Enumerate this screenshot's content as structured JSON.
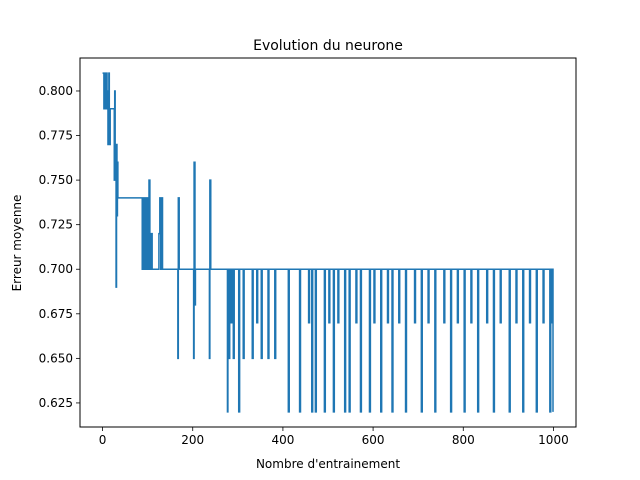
{
  "chart_data": {
    "type": "line",
    "title": "Evolution du neurone",
    "xlabel": "Nombre d'entrainement",
    "ylabel": "Erreur moyenne",
    "xlim": [
      -50,
      1050
    ],
    "ylim": [
      0.6115,
      0.8185
    ],
    "xticks": [
      0,
      200,
      400,
      600,
      800,
      1000
    ],
    "xtick_labels": [
      "0",
      "200",
      "400",
      "600",
      "800",
      "1000"
    ],
    "yticks": [
      0.625,
      0.65,
      0.675,
      0.7,
      0.725,
      0.75,
      0.775,
      0.8
    ],
    "ytick_labels": [
      "0.625",
      "0.650",
      "0.675",
      "0.700",
      "0.725",
      "0.750",
      "0.775",
      "0.800"
    ],
    "grid": false,
    "legend": "none",
    "series": [
      {
        "color": "#1f77b4",
        "style": "steps",
        "points": [
          [
            0,
            0.81
          ],
          [
            2,
            0.81
          ],
          [
            3,
            0.79
          ],
          [
            4,
            0.81
          ],
          [
            7,
            0.79
          ],
          [
            9,
            0.81
          ],
          [
            10,
            0.8
          ],
          [
            12,
            0.77
          ],
          [
            14,
            0.81
          ],
          [
            15,
            0.77
          ],
          [
            17,
            0.79
          ],
          [
            25,
            0.79
          ],
          [
            26,
            0.75
          ],
          [
            27,
            0.8
          ],
          [
            28,
            0.75
          ],
          [
            30,
            0.69
          ],
          [
            31,
            0.77
          ],
          [
            32,
            0.73
          ],
          [
            33,
            0.76
          ],
          [
            34,
            0.74
          ],
          [
            85,
            0.74
          ],
          [
            88,
            0.7
          ],
          [
            89,
            0.74
          ],
          [
            92,
            0.7
          ],
          [
            94,
            0.74
          ],
          [
            96,
            0.7
          ],
          [
            98,
            0.74
          ],
          [
            100,
            0.7
          ],
          [
            103,
            0.75
          ],
          [
            105,
            0.7
          ],
          [
            108,
            0.72
          ],
          [
            110,
            0.7
          ],
          [
            125,
            0.72
          ],
          [
            127,
            0.74
          ],
          [
            129,
            0.7
          ],
          [
            131,
            0.74
          ],
          [
            133,
            0.7
          ],
          [
            165,
            0.7
          ],
          [
            167,
            0.65
          ],
          [
            168,
            0.74
          ],
          [
            170,
            0.7
          ],
          [
            200,
            0.7
          ],
          [
            202,
            0.65
          ],
          [
            203,
            0.76
          ],
          [
            205,
            0.68
          ],
          [
            206,
            0.7
          ],
          [
            235,
            0.7
          ],
          [
            237,
            0.65
          ],
          [
            238,
            0.75
          ],
          [
            240,
            0.7
          ],
          [
            275,
            0.7
          ],
          [
            277,
            0.62
          ],
          [
            278,
            0.7
          ],
          [
            280,
            0.65
          ],
          [
            282,
            0.7
          ],
          [
            285,
            0.67
          ],
          [
            287,
            0.7
          ],
          [
            290,
            0.65
          ],
          [
            292,
            0.7
          ],
          [
            300,
            0.7
          ],
          [
            302,
            0.62
          ],
          [
            304,
            0.7
          ],
          [
            310,
            0.7
          ],
          [
            312,
            0.65
          ],
          [
            314,
            0.7
          ],
          [
            330,
            0.7
          ],
          [
            332,
            0.65
          ],
          [
            334,
            0.7
          ],
          [
            340,
            0.7
          ],
          [
            342,
            0.67
          ],
          [
            344,
            0.7
          ],
          [
            350,
            0.7
          ],
          [
            352,
            0.65
          ],
          [
            354,
            0.7
          ],
          [
            365,
            0.7
          ],
          [
            367,
            0.65
          ],
          [
            369,
            0.7
          ],
          [
            380,
            0.7
          ],
          [
            382,
            0.65
          ],
          [
            384,
            0.7
          ],
          [
            410,
            0.7
          ],
          [
            412,
            0.62
          ],
          [
            414,
            0.7
          ],
          [
            435,
            0.7
          ],
          [
            437,
            0.62
          ],
          [
            439,
            0.7
          ],
          [
            455,
            0.7
          ],
          [
            457,
            0.67
          ],
          [
            459,
            0.7
          ],
          [
            462,
            0.7
          ],
          [
            464,
            0.62
          ],
          [
            466,
            0.7
          ],
          [
            470,
            0.7
          ],
          [
            472,
            0.62
          ],
          [
            474,
            0.7
          ],
          [
            490,
            0.7
          ],
          [
            492,
            0.62
          ],
          [
            494,
            0.7
          ],
          [
            500,
            0.7
          ],
          [
            502,
            0.67
          ],
          [
            504,
            0.7
          ],
          [
            510,
            0.7
          ],
          [
            512,
            0.62
          ],
          [
            514,
            0.7
          ],
          [
            520,
            0.7
          ],
          [
            522,
            0.67
          ],
          [
            524,
            0.7
          ],
          [
            535,
            0.7
          ],
          [
            537,
            0.62
          ],
          [
            539,
            0.7
          ],
          [
            545,
            0.7
          ],
          [
            547,
            0.62
          ],
          [
            549,
            0.7
          ],
          [
            560,
            0.7
          ],
          [
            562,
            0.67
          ],
          [
            564,
            0.7
          ],
          [
            570,
            0.7
          ],
          [
            572,
            0.62
          ],
          [
            574,
            0.7
          ],
          [
            590,
            0.7
          ],
          [
            592,
            0.62
          ],
          [
            594,
            0.7
          ],
          [
            600,
            0.7
          ],
          [
            602,
            0.67
          ],
          [
            604,
            0.7
          ],
          [
            615,
            0.7
          ],
          [
            617,
            0.62
          ],
          [
            619,
            0.7
          ],
          [
            630,
            0.7
          ],
          [
            632,
            0.67
          ],
          [
            634,
            0.7
          ],
          [
            640,
            0.7
          ],
          [
            642,
            0.62
          ],
          [
            644,
            0.7
          ],
          [
            655,
            0.7
          ],
          [
            657,
            0.67
          ],
          [
            659,
            0.7
          ],
          [
            670,
            0.7
          ],
          [
            672,
            0.62
          ],
          [
            674,
            0.7
          ],
          [
            690,
            0.7
          ],
          [
            692,
            0.67
          ],
          [
            694,
            0.7
          ],
          [
            705,
            0.7
          ],
          [
            707,
            0.62
          ],
          [
            709,
            0.7
          ],
          [
            720,
            0.7
          ],
          [
            722,
            0.67
          ],
          [
            724,
            0.7
          ],
          [
            735,
            0.7
          ],
          [
            737,
            0.62
          ],
          [
            739,
            0.7
          ],
          [
            755,
            0.7
          ],
          [
            757,
            0.67
          ],
          [
            759,
            0.7
          ],
          [
            770,
            0.7
          ],
          [
            772,
            0.62
          ],
          [
            774,
            0.7
          ],
          [
            785,
            0.7
          ],
          [
            787,
            0.67
          ],
          [
            789,
            0.7
          ],
          [
            800,
            0.7
          ],
          [
            802,
            0.62
          ],
          [
            804,
            0.7
          ],
          [
            815,
            0.7
          ],
          [
            817,
            0.67
          ],
          [
            819,
            0.7
          ],
          [
            830,
            0.7
          ],
          [
            832,
            0.62
          ],
          [
            834,
            0.7
          ],
          [
            850,
            0.7
          ],
          [
            852,
            0.67
          ],
          [
            854,
            0.7
          ],
          [
            865,
            0.7
          ],
          [
            867,
            0.62
          ],
          [
            869,
            0.7
          ],
          [
            880,
            0.7
          ],
          [
            882,
            0.67
          ],
          [
            884,
            0.7
          ],
          [
            900,
            0.7
          ],
          [
            902,
            0.62
          ],
          [
            904,
            0.7
          ],
          [
            915,
            0.7
          ],
          [
            917,
            0.67
          ],
          [
            919,
            0.7
          ],
          [
            930,
            0.7
          ],
          [
            932,
            0.62
          ],
          [
            934,
            0.7
          ],
          [
            945,
            0.7
          ],
          [
            947,
            0.67
          ],
          [
            949,
            0.7
          ],
          [
            960,
            0.7
          ],
          [
            962,
            0.62
          ],
          [
            964,
            0.7
          ],
          [
            975,
            0.7
          ],
          [
            977,
            0.67
          ],
          [
            979,
            0.7
          ],
          [
            990,
            0.7
          ],
          [
            992,
            0.62
          ],
          [
            994,
            0.7
          ],
          [
            996,
            0.67
          ],
          [
            998,
            0.7
          ],
          [
            999,
            0.62
          ]
        ]
      }
    ]
  }
}
